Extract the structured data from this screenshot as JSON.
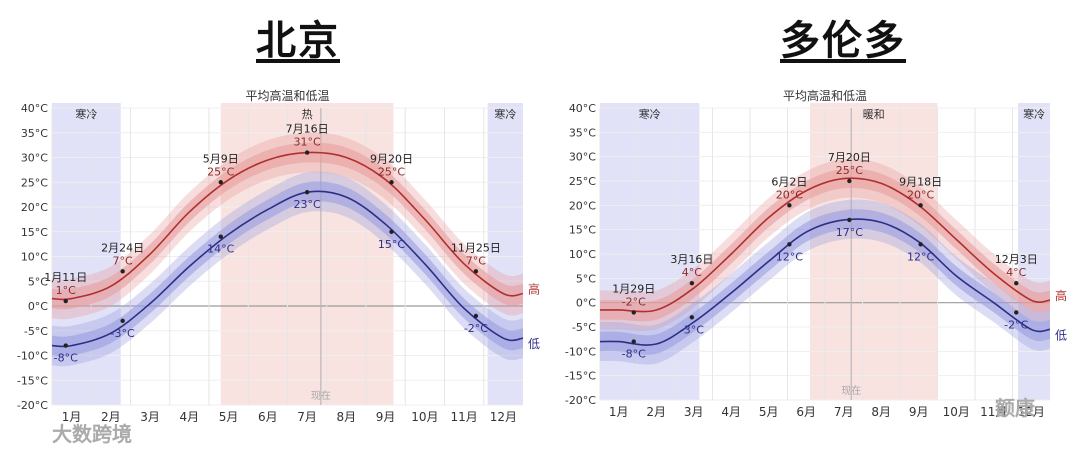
{
  "titles": {
    "left": "北京",
    "right": "多伦多"
  },
  "watermarks": {
    "left": "大数跨境",
    "right": "额康"
  },
  "chart_data": [
    {
      "type": "area",
      "title": "平均高温和低温",
      "y_ticks": [
        "40°C",
        "35°C",
        "30°C",
        "25°C",
        "20°C",
        "15°C",
        "10°C",
        "5°C",
        "0°C",
        "-5°C",
        "-10°C",
        "-15°C",
        "-20°C"
      ],
      "ylim": [
        -20,
        40
      ],
      "categories": [
        "1月",
        "2月",
        "3月",
        "4月",
        "5月",
        "6月",
        "7月",
        "8月",
        "9月",
        "10月",
        "11月",
        "12月"
      ],
      "seasons": [
        {
          "label": "寒冷",
          "start_month": 0.0,
          "end_month": 1.75,
          "color": "#dcdcf6"
        },
        {
          "label": "热",
          "start_month": 4.3,
          "end_month": 8.7,
          "color": "#f7dedc"
        },
        {
          "label": "寒冷",
          "start_month": 11.1,
          "end_month": 12.0,
          "color": "#dcdcf6"
        }
      ],
      "now_label": "现在",
      "now_month": 6.85,
      "series": [
        {
          "name": "高",
          "color": "#b02f2f",
          "band": "#e89e9e",
          "values": [
            1.5,
            4,
            10.5,
            19,
            25.5,
            29.5,
            31,
            30,
            25.5,
            17.5,
            8.5,
            2.5
          ]
        },
        {
          "name": "低",
          "color": "#2e2e86",
          "band": "#9a9ee0",
          "values": [
            -8,
            -5.5,
            0.5,
            8,
            14.5,
            19.5,
            23,
            22,
            16.5,
            8.5,
            -0.5,
            -6.5
          ]
        }
      ],
      "annotations": [
        {
          "date": "1月11日",
          "temp": "1°C",
          "series": "高",
          "x": 0.35,
          "y": 1
        },
        {
          "date": "",
          "temp": "-8°C",
          "series": "低",
          "x": 0.35,
          "y": -8
        },
        {
          "date": "2月24日",
          "temp": "7°C",
          "series": "高",
          "x": 1.8,
          "y": 7
        },
        {
          "date": "",
          "temp": "-3°C",
          "series": "低",
          "x": 1.8,
          "y": -3
        },
        {
          "date": "5月9日",
          "temp": "25°C",
          "series": "高",
          "x": 4.3,
          "y": 25
        },
        {
          "date": "",
          "temp": "14°C",
          "series": "低",
          "x": 4.3,
          "y": 14
        },
        {
          "date": "7月16日",
          "temp": "31°C",
          "series": "高",
          "x": 6.5,
          "y": 31
        },
        {
          "date": "",
          "temp": "23°C",
          "series": "低",
          "x": 6.5,
          "y": 23
        },
        {
          "date": "9月20日",
          "temp": "25°C",
          "series": "高",
          "x": 8.65,
          "y": 25
        },
        {
          "date": "",
          "temp": "15°C",
          "series": "低",
          "x": 8.65,
          "y": 15
        },
        {
          "date": "11月25日",
          "temp": "7°C",
          "series": "高",
          "x": 10.8,
          "y": 7
        },
        {
          "date": "",
          "temp": "-2°C",
          "series": "低",
          "x": 10.8,
          "y": -2
        }
      ]
    },
    {
      "type": "area",
      "title": "平均高温和低温",
      "y_ticks": [
        "40°C",
        "35°C",
        "30°C",
        "25°C",
        "20°C",
        "15°C",
        "10°C",
        "5°C",
        "0°C",
        "-5°C",
        "-10°C",
        "-15°C",
        "-20°C"
      ],
      "ylim": [
        -20,
        40
      ],
      "categories": [
        "1月",
        "2月",
        "3月",
        "4月",
        "5月",
        "6月",
        "7月",
        "8月",
        "9月",
        "10月",
        "11月",
        "12月"
      ],
      "seasons": [
        {
          "label": "寒冷",
          "start_month": 0.0,
          "end_month": 2.65,
          "color": "#dcdcf6"
        },
        {
          "label": "暖和",
          "start_month": 5.6,
          "end_month": 9.0,
          "color": "#f7dedc"
        },
        {
          "label": "寒冷",
          "start_month": 11.15,
          "end_month": 12.0,
          "color": "#dcdcf6"
        }
      ],
      "now_label": "现在",
      "now_month": 6.7,
      "series": [
        {
          "name": "高",
          "color": "#b02f2f",
          "band": "#e89e9e",
          "values": [
            -1.5,
            -1.5,
            3,
            10,
            17.5,
            23,
            25.5,
            24.5,
            20,
            13,
            6,
            0.5
          ]
        },
        {
          "name": "低",
          "color": "#2e2e86",
          "band": "#9a9ee0",
          "values": [
            -8,
            -8.5,
            -4,
            2,
            8.5,
            14.5,
            17,
            16.5,
            12.5,
            5.5,
            0,
            -5.5
          ]
        }
      ],
      "annotations": [
        {
          "date": "1月29日",
          "temp": "-2°C",
          "series": "高",
          "x": 0.9,
          "y": -2
        },
        {
          "date": "",
          "temp": "-8°C",
          "series": "低",
          "x": 0.9,
          "y": -8
        },
        {
          "date": "3月16日",
          "temp": "4°C",
          "series": "高",
          "x": 2.45,
          "y": 4
        },
        {
          "date": "",
          "temp": "-3°C",
          "series": "低",
          "x": 2.45,
          "y": -3
        },
        {
          "date": "6月2日",
          "temp": "20°C",
          "series": "高",
          "x": 5.05,
          "y": 20
        },
        {
          "date": "",
          "temp": "12°C",
          "series": "低",
          "x": 5.05,
          "y": 12
        },
        {
          "date": "7月20日",
          "temp": "25°C",
          "series": "高",
          "x": 6.65,
          "y": 25
        },
        {
          "date": "",
          "temp": "17°C",
          "series": "低",
          "x": 6.65,
          "y": 17
        },
        {
          "date": "9月18日",
          "temp": "20°C",
          "series": "高",
          "x": 8.55,
          "y": 20
        },
        {
          "date": "",
          "temp": "12°C",
          "series": "低",
          "x": 8.55,
          "y": 12
        },
        {
          "date": "12月3日",
          "temp": "4°C",
          "series": "高",
          "x": 11.1,
          "y": 4
        },
        {
          "date": "",
          "temp": "-2°C",
          "series": "低",
          "x": 11.1,
          "y": -2
        }
      ]
    }
  ]
}
